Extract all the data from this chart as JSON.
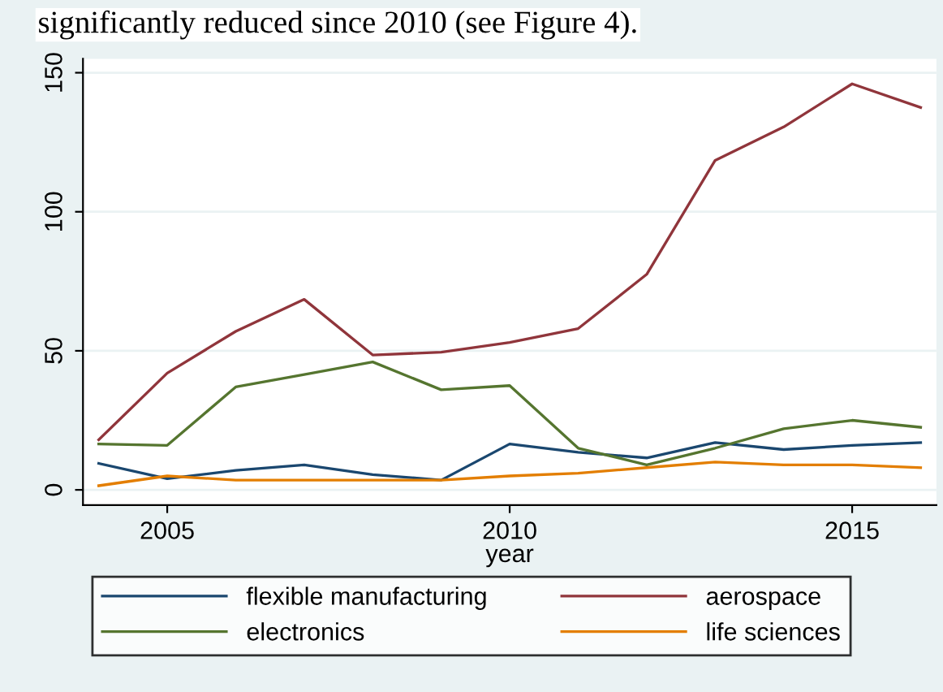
{
  "chart_data": {
    "type": "line",
    "xlabel": "year",
    "annotations": [
      "significantly reduced since 2010 (see Figure 4)."
    ],
    "x": [
      2004,
      2005,
      2006,
      2007,
      2008,
      2009,
      2010,
      2011,
      2012,
      2013,
      2014,
      2015,
      2016
    ],
    "series": [
      {
        "name": "flexible manufacturing",
        "color": "#1a476f",
        "values": [
          9.5,
          4,
          7,
          9,
          5.5,
          3.5,
          16.5,
          13.5,
          11.5,
          17,
          14.5,
          16,
          17
        ]
      },
      {
        "name": "aerospace",
        "color": "#90353b",
        "values": [
          18,
          42,
          57,
          68.5,
          48.5,
          49.5,
          53,
          58,
          77.5,
          118.5,
          130.5,
          146,
          137.5
        ]
      },
      {
        "name": "electronics",
        "color": "#55752f",
        "values": [
          16.5,
          16,
          37,
          41.5,
          46,
          36,
          37.5,
          15,
          9,
          15,
          22,
          25,
          22.5
        ]
      },
      {
        "name": "life sciences",
        "color": "#e37e00",
        "values": [
          1.5,
          5,
          3.5,
          3.5,
          3.5,
          3.5,
          5,
          6,
          8,
          10,
          9,
          9,
          8
        ]
      }
    ],
    "xlim": [
      2003.77,
      2016.23
    ],
    "ylim": [
      -5.5,
      155
    ],
    "xticks": [
      2005,
      2010,
      2015
    ],
    "yticks": [
      0,
      50,
      100,
      150
    ],
    "grid": "y",
    "legend": "bottom",
    "marker": "none",
    "line_style": "solid"
  }
}
